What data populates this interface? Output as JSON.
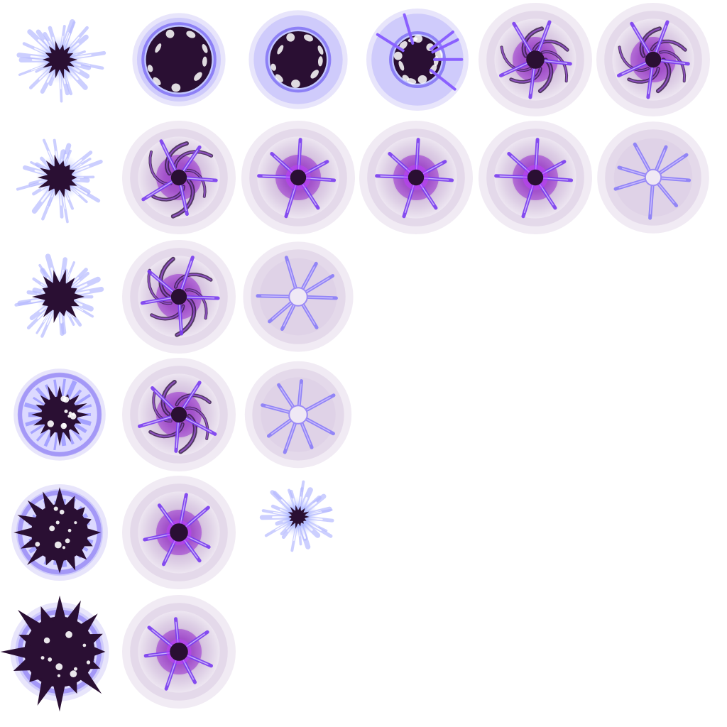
{
  "sprite_sheet": {
    "background": "#ffffff",
    "palette": {
      "halo_light": "#f1ebf4",
      "halo_mid": "#e4d9ea",
      "halo_deep": "#c9aed6",
      "purple_glow": "#9b2fd1",
      "violet": "#7a3cf0",
      "core": "#2a0f33",
      "core_ring": "#8a60ff",
      "spark_blue": "#a9b4ff",
      "white": "#ffffff"
    },
    "columns": [
      {
        "name": "column-1-implosion-start",
        "frames": [
          {
            "kind": "spark",
            "core": 0.18,
            "spread": 1.0,
            "halo": 0.0
          },
          {
            "kind": "spark",
            "core": 0.22,
            "spread": 1.0,
            "halo": 0.0
          },
          {
            "kind": "spark",
            "core": 0.26,
            "spread": 1.0,
            "halo": 0.0
          },
          {
            "kind": "ring-burst",
            "core": 0.32,
            "spread": 1.0,
            "halo": 0.55
          },
          {
            "kind": "ring-burst",
            "core": 0.5,
            "spread": 1.0,
            "halo": 0.75
          },
          {
            "kind": "ring-burst",
            "core": 0.62,
            "spread": 1.0,
            "halo": 0.85
          }
        ]
      },
      {
        "name": "column-2-dark-orb",
        "frames": [
          {
            "kind": "dark-orb",
            "core": 0.58,
            "spread": 1.0,
            "halo": 0.6
          },
          {
            "kind": "vortex",
            "core": 0.14,
            "spread": 1.0,
            "halo": 1.0
          },
          {
            "kind": "vortex",
            "core": 0.14,
            "spread": 1.0,
            "halo": 1.0
          },
          {
            "kind": "vortex",
            "core": 0.14,
            "spread": 1.0,
            "halo": 1.0
          },
          {
            "kind": "star",
            "core": 0.16,
            "spread": 1.0,
            "halo": 1.0
          },
          {
            "kind": "star",
            "core": 0.16,
            "spread": 1.0,
            "halo": 1.0
          }
        ]
      },
      {
        "name": "column-3-collapse",
        "frames": [
          {
            "kind": "dark-orb",
            "core": 0.5,
            "spread": 1.0,
            "halo": 0.85
          },
          {
            "kind": "star",
            "core": 0.14,
            "spread": 1.0,
            "halo": 1.0
          },
          {
            "kind": "pale-star",
            "core": 0.16,
            "spread": 1.0,
            "halo": 0.8
          },
          {
            "kind": "pale-star",
            "core": 0.16,
            "spread": 0.9,
            "halo": 0.6
          },
          {
            "kind": "spark",
            "core": 0.12,
            "spread": 0.85,
            "halo": 0.0
          }
        ]
      },
      {
        "name": "column-4",
        "frames": [
          {
            "kind": "cracked-orb",
            "core": 0.42,
            "spread": 1.0,
            "halo": 1.0
          }
        ]
      },
      {
        "name": "column-5",
        "frames": [
          {
            "kind": "vortex-orb",
            "core": 0.16,
            "spread": 1.0,
            "halo": 1.0
          },
          {
            "kind": "star",
            "core": 0.14,
            "spread": 1.0,
            "halo": 1.0
          }
        ]
      },
      {
        "name": "column-6",
        "frames": [
          {
            "kind": "vortex-orb",
            "core": 0.14,
            "spread": 1.0,
            "halo": 1.0
          },
          {
            "kind": "pale-star",
            "core": 0.14,
            "spread": 1.0,
            "halo": 0.9
          }
        ]
      }
    ]
  }
}
